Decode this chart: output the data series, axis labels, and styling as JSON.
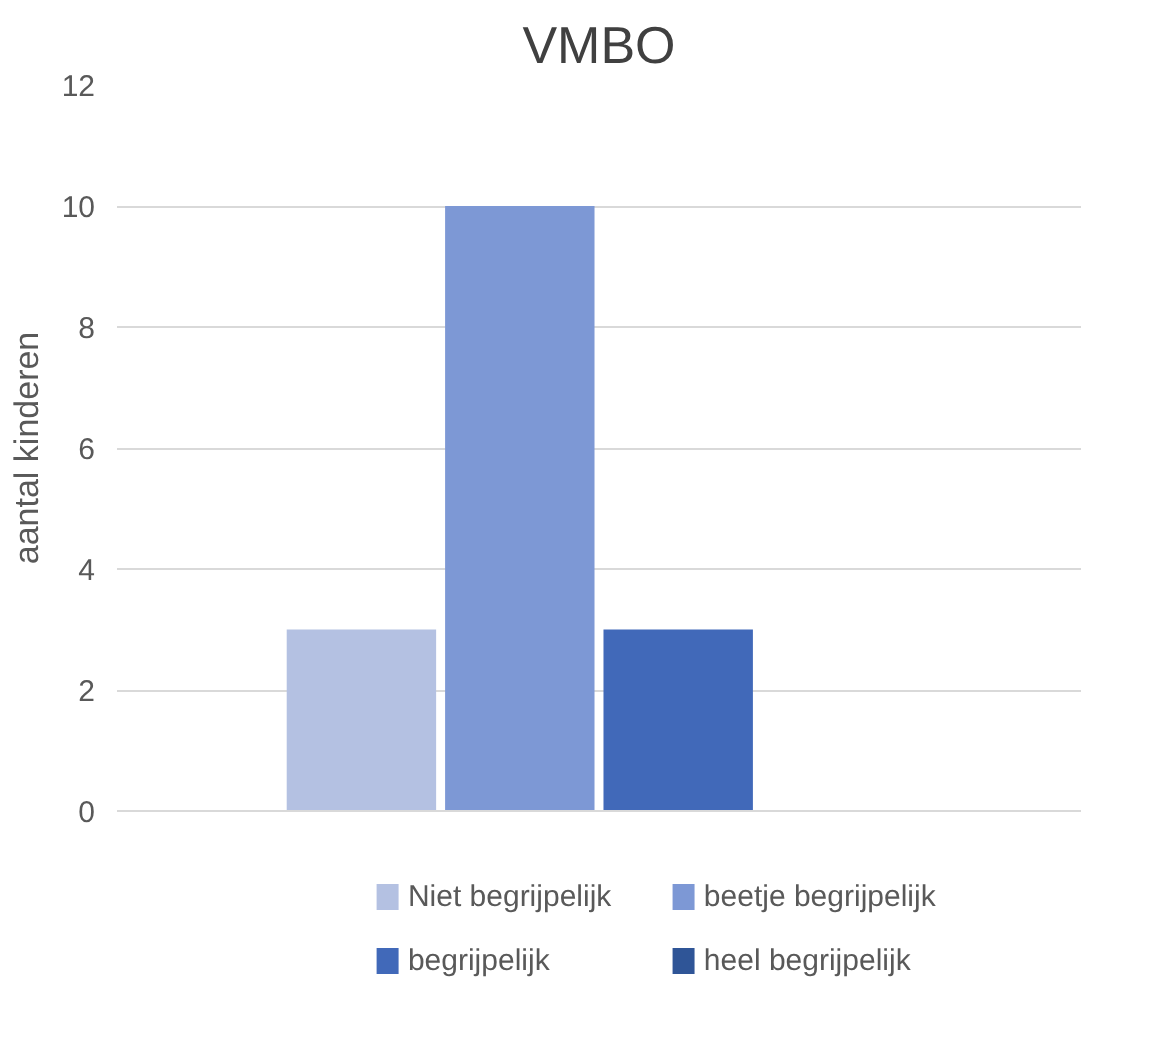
{
  "chart_data": {
    "type": "bar",
    "title": "VMBO",
    "ylabel": "aantal kinderen",
    "categories": [
      null
    ],
    "series": [
      {
        "name": "Niet begrijpelijk",
        "color": "#b4c1e2",
        "values": [
          3
        ]
      },
      {
        "name": "beetje begrijpelijk",
        "color": "#7d98d5",
        "values": [
          10
        ]
      },
      {
        "name": "begrijpelijk",
        "color": "#4169b9",
        "values": [
          3
        ]
      },
      {
        "name": "heel begrijpelijk",
        "color": "#2f5597",
        "values": [
          0
        ]
      }
    ],
    "ylim": [
      0,
      12
    ],
    "yticks": [
      0,
      2,
      4,
      6,
      8,
      10,
      12
    ],
    "grid": "y",
    "legend": "bottom"
  }
}
